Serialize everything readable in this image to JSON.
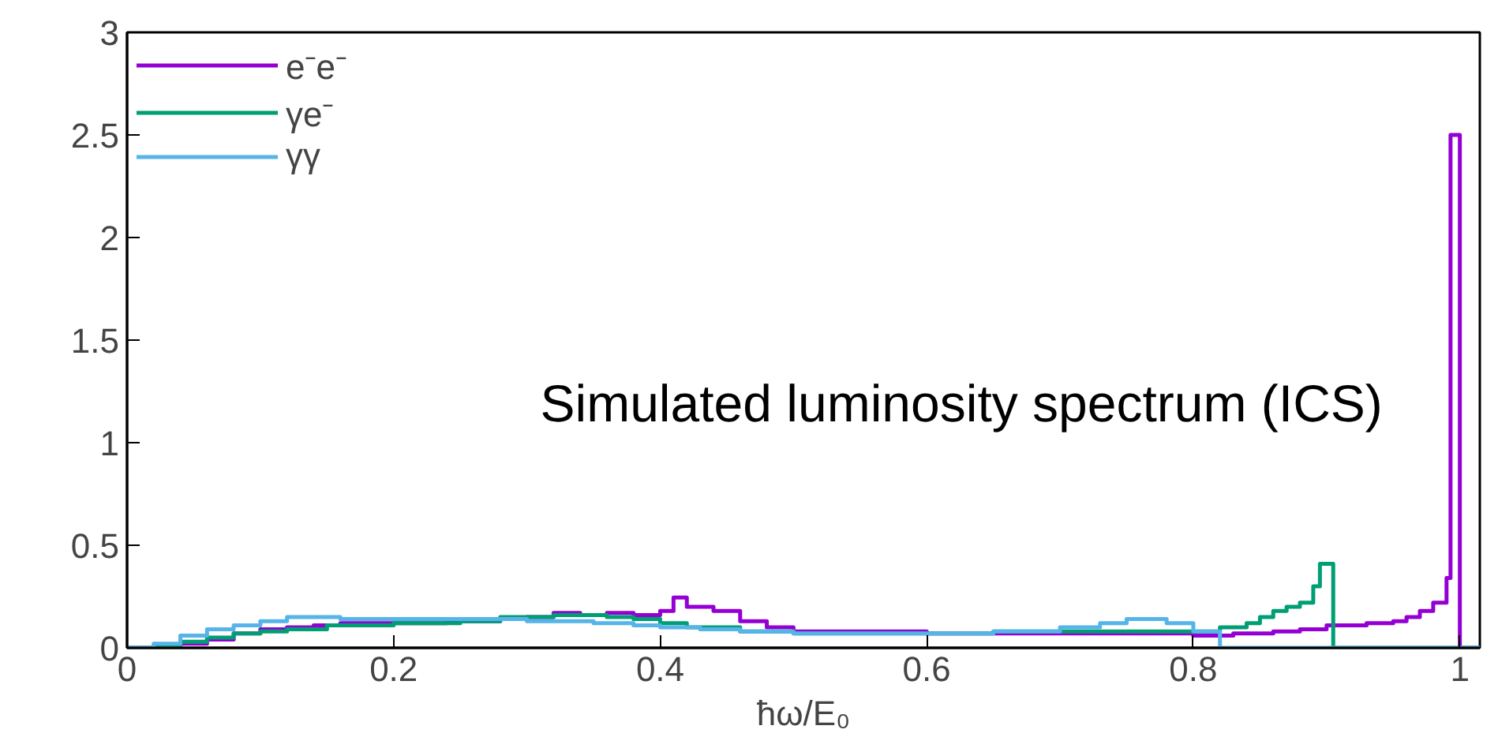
{
  "chart_data": {
    "type": "step",
    "xlabel": "ħω/E₀",
    "annotations": [
      "Simulated luminosity spectrum (ICS)"
    ],
    "xlim": [
      0,
      1.015
    ],
    "ylim": [
      0,
      3
    ],
    "xticks": [
      0,
      0.2,
      0.4,
      0.6,
      0.8,
      1
    ],
    "yticks": [
      0,
      0.5,
      1,
      1.5,
      2,
      2.5,
      3
    ],
    "grid": false,
    "legend": "top left",
    "series": [
      {
        "name": "e⁻e⁻",
        "color": "#9400d3",
        "x": [
          0,
          0.04,
          0.06,
          0.08,
          0.1,
          0.12,
          0.14,
          0.16,
          0.2,
          0.24,
          0.28,
          0.3,
          0.32,
          0.34,
          0.36,
          0.38,
          0.4,
          0.41,
          0.42,
          0.44,
          0.46,
          0.48,
          0.5,
          0.55,
          0.6,
          0.65,
          0.7,
          0.75,
          0.8,
          0.83,
          0.86,
          0.88,
          0.9,
          0.93,
          0.95,
          0.96,
          0.97,
          0.98,
          0.99,
          0.993,
          1.0,
          1.015
        ],
        "values": [
          0,
          0.02,
          0.04,
          0.07,
          0.09,
          0.1,
          0.11,
          0.12,
          0.12,
          0.13,
          0.14,
          0.15,
          0.17,
          0.16,
          0.17,
          0.16,
          0.18,
          0.245,
          0.2,
          0.18,
          0.13,
          0.1,
          0.08,
          0.08,
          0.07,
          0.07,
          0.07,
          0.07,
          0.06,
          0.07,
          0.08,
          0.09,
          0.11,
          0.12,
          0.13,
          0.15,
          0.18,
          0.22,
          0.34,
          2.5,
          0,
          0
        ]
      },
      {
        "name": "γe⁻",
        "color": "#009e73",
        "x": [
          0,
          0.02,
          0.04,
          0.06,
          0.08,
          0.1,
          0.12,
          0.15,
          0.2,
          0.25,
          0.28,
          0.32,
          0.36,
          0.38,
          0.4,
          0.42,
          0.46,
          0.5,
          0.55,
          0.6,
          0.65,
          0.7,
          0.75,
          0.8,
          0.82,
          0.84,
          0.85,
          0.86,
          0.87,
          0.88,
          0.89,
          0.895,
          0.905,
          1.015
        ],
        "values": [
          0,
          0.01,
          0.03,
          0.05,
          0.07,
          0.08,
          0.09,
          0.11,
          0.12,
          0.13,
          0.15,
          0.16,
          0.15,
          0.14,
          0.12,
          0.1,
          0.08,
          0.07,
          0.07,
          0.07,
          0.08,
          0.08,
          0.08,
          0.08,
          0.1,
          0.12,
          0.15,
          0.18,
          0.2,
          0.22,
          0.3,
          0.41,
          0,
          0
        ]
      },
      {
        "name": "γγ",
        "color": "#56b4e9",
        "x": [
          0,
          0.02,
          0.04,
          0.06,
          0.08,
          0.1,
          0.12,
          0.16,
          0.2,
          0.25,
          0.3,
          0.35,
          0.38,
          0.4,
          0.43,
          0.46,
          0.5,
          0.55,
          0.6,
          0.65,
          0.7,
          0.73,
          0.75,
          0.78,
          0.8,
          0.82,
          1.015
        ],
        "values": [
          0,
          0.02,
          0.06,
          0.09,
          0.11,
          0.13,
          0.15,
          0.14,
          0.14,
          0.14,
          0.13,
          0.12,
          0.11,
          0.1,
          0.09,
          0.08,
          0.07,
          0.07,
          0.07,
          0.08,
          0.1,
          0.12,
          0.14,
          0.12,
          0.08,
          0,
          0
        ]
      }
    ]
  }
}
